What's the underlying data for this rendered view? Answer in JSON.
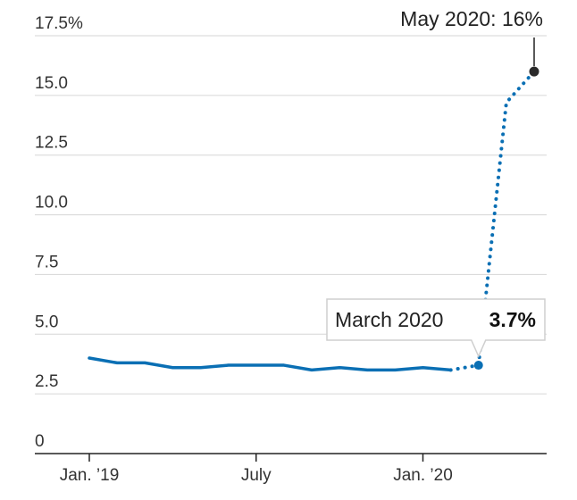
{
  "chart_data": {
    "type": "line",
    "title": "",
    "xlabel": "",
    "ylabel": "",
    "ylim": [
      0,
      17.5
    ],
    "grid": true,
    "y_ticks": [
      {
        "value": 0,
        "label": "0"
      },
      {
        "value": 2.5,
        "label": "2.5"
      },
      {
        "value": 5.0,
        "label": "5.0"
      },
      {
        "value": 7.5,
        "label": "7.5"
      },
      {
        "value": 10.0,
        "label": "10.0"
      },
      {
        "value": 12.5,
        "label": "12.5"
      },
      {
        "value": 15.0,
        "label": "15.0"
      },
      {
        "value": 17.5,
        "label": "17.5%"
      }
    ],
    "x_ticks": [
      {
        "value": "2019-01",
        "label": "Jan. ’19"
      },
      {
        "value": "2019-07",
        "label": "July"
      },
      {
        "value": "2020-01",
        "label": "Jan. ’20"
      }
    ],
    "series": [
      {
        "style": "solid",
        "color": "#0a6fb4",
        "points": [
          {
            "x": "2019-01",
            "y": 4.0
          },
          {
            "x": "2019-02",
            "y": 3.8
          },
          {
            "x": "2019-03",
            "y": 3.8
          },
          {
            "x": "2019-04",
            "y": 3.6
          },
          {
            "x": "2019-05",
            "y": 3.6
          },
          {
            "x": "2019-06",
            "y": 3.7
          },
          {
            "x": "2019-07",
            "y": 3.7
          },
          {
            "x": "2019-08",
            "y": 3.7
          },
          {
            "x": "2019-09",
            "y": 3.5
          },
          {
            "x": "2019-10",
            "y": 3.6
          },
          {
            "x": "2019-11",
            "y": 3.5
          },
          {
            "x": "2019-12",
            "y": 3.5
          },
          {
            "x": "2020-01",
            "y": 3.6
          },
          {
            "x": "2020-02",
            "y": 3.5
          }
        ]
      },
      {
        "style": "dotted",
        "color": "#0a6fb4",
        "points": [
          {
            "x": "2020-02",
            "y": 3.5
          },
          {
            "x": "2020-03",
            "y": 3.7
          },
          {
            "x": "2020-04",
            "y": 14.7
          },
          {
            "x": "2020-05",
            "y": 16.0
          }
        ]
      }
    ],
    "annotations": [
      {
        "x": "2020-03",
        "y": 3.7,
        "label": "March 2020",
        "value": "3.7%",
        "style": "callout-box"
      },
      {
        "x": "2020-05",
        "y": 16.0,
        "label": "May 2020: 16%",
        "style": "leader-line"
      }
    ]
  },
  "colors": {
    "line": "#0a6fb4",
    "grid": "#d6d6d6",
    "axis": "#222222",
    "text": "#222222",
    "callout_border": "#cfcfcf",
    "callout_fill": "#ffffff",
    "marker_end": "#2a2a2a"
  }
}
